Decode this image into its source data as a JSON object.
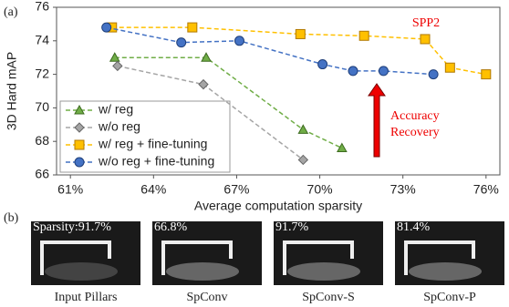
{
  "chart_data": {
    "type": "line",
    "panel_label": "(a)",
    "x_label": "Average computation sparsity",
    "y_label": "3D Hard mAP",
    "xlim": [
      60.5,
      76.5
    ],
    "xticks": [
      {
        "value": 61,
        "label": "61%"
      },
      {
        "value": 64,
        "label": "64%"
      },
      {
        "value": 67,
        "label": "67%"
      },
      {
        "value": 70,
        "label": "70%"
      },
      {
        "value": 73,
        "label": "73%"
      },
      {
        "value": 76,
        "label": "76%"
      }
    ],
    "ylim": [
      66,
      76
    ],
    "yticks": [
      66,
      68,
      70,
      72,
      74,
      76
    ],
    "legend": "lower left",
    "series": [
      {
        "name": "w/ reg",
        "color": "#70ad47",
        "marker": "triangle",
        "x": [
          62.6,
          65.9,
          69.4,
          70.8
        ],
        "values": [
          73,
          73,
          68.7,
          67.6
        ]
      },
      {
        "name": "w/o reg",
        "color": "#a5a5a5",
        "marker": "diamond",
        "x": [
          62.7,
          65.8,
          69.4
        ],
        "values": [
          72.5,
          71.4,
          66.9
        ]
      },
      {
        "name": "w/ reg + fine-tuning",
        "color": "#ffc000",
        "marker": "square",
        "x": [
          62.5,
          65.4,
          69.3,
          71.6,
          73.8,
          74.7,
          76.0
        ],
        "values": [
          74.8,
          74.8,
          74.4,
          74.3,
          74.1,
          72.4,
          72.0
        ]
      },
      {
        "name": "w/o reg + fine-tuning",
        "color": "#4472c4",
        "marker": "circle",
        "x": [
          62.3,
          65.0,
          67.1,
          70.1,
          71.2,
          72.3,
          74.1
        ],
        "values": [
          74.8,
          73.9,
          74.0,
          72.6,
          72.2,
          72.2,
          72.0
        ]
      }
    ],
    "annotations": [
      "SPP2",
      "Accuracy",
      "Recovery"
    ]
  },
  "panel_b": {
    "label": "(b)",
    "items": [
      {
        "sparsity": "Sparsity:91.7%",
        "caption": "Input Pillars"
      },
      {
        "sparsity": "66.8%",
        "caption": "SpConv"
      },
      {
        "sparsity": "91.7%",
        "caption": "SpConv-S"
      },
      {
        "sparsity": "81.4%",
        "caption": "SpConv-P"
      }
    ]
  }
}
